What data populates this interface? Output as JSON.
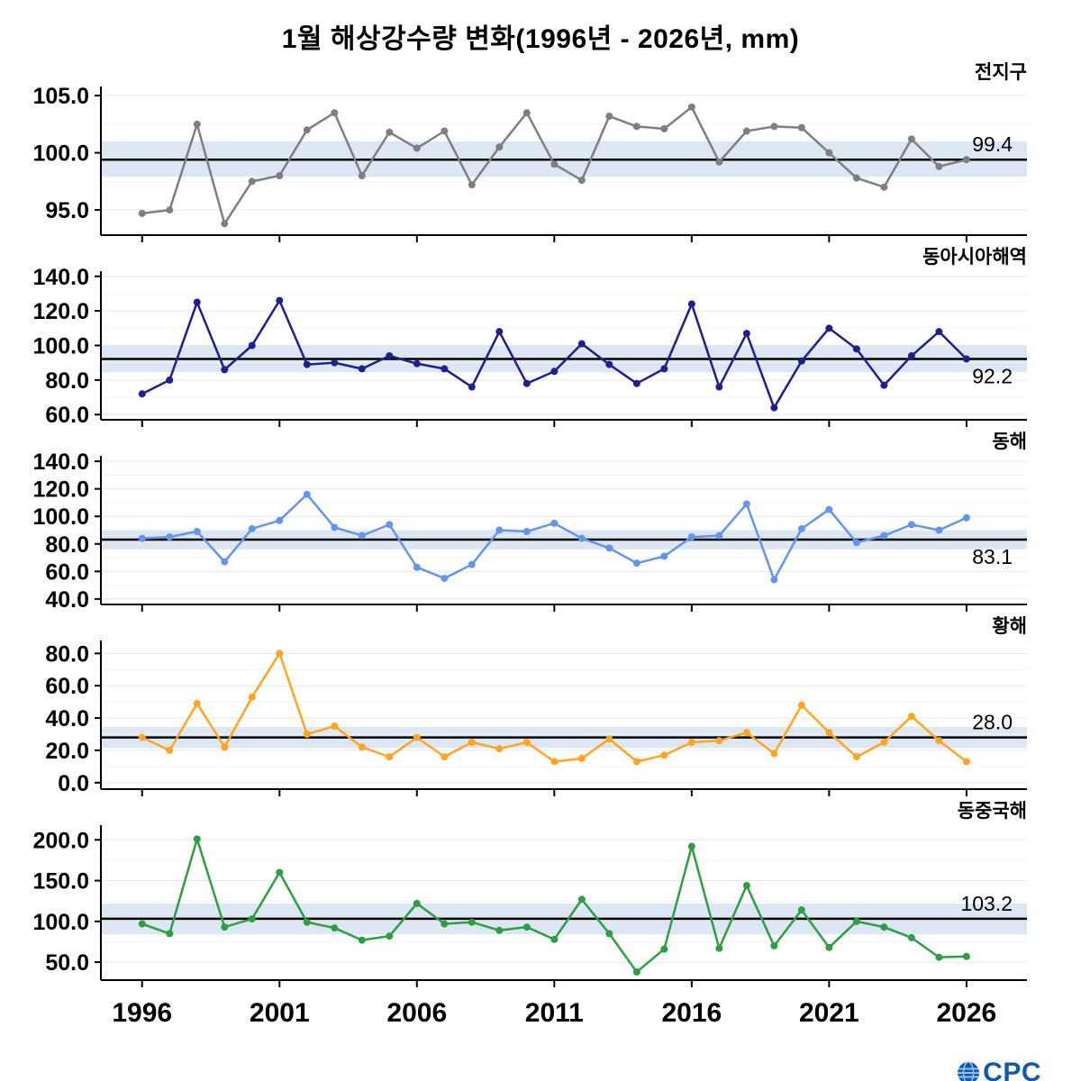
{
  "title": "1월 해상강수량 변화(1996년 - 2026년, mm)",
  "logo": {
    "text": "CPC",
    "color": "#1458ad"
  },
  "chart_data": {
    "type": "line",
    "x": [
      1996,
      1997,
      1998,
      1999,
      2000,
      2001,
      2002,
      2003,
      2004,
      2005,
      2006,
      2007,
      2008,
      2009,
      2010,
      2011,
      2012,
      2013,
      2014,
      2015,
      2016,
      2017,
      2018,
      2019,
      2020,
      2021,
      2022,
      2023,
      2024,
      2025,
      2026
    ],
    "x_ticks": [
      1996,
      2001,
      2006,
      2011,
      2016,
      2021,
      2026
    ],
    "xlim": [
      1994.5,
      2028.2
    ],
    "band_color": "#dce7f3",
    "mean_line_color": "#000000",
    "grid": true,
    "panels": [
      {
        "id": "global",
        "label": "전지구",
        "color": "#7f7f7f",
        "mean": 99.4,
        "mean_label": "99.4",
        "mean_label_pos": "above",
        "band": [
          97.9,
          101.0
        ],
        "ylim": [
          92.8,
          105.8
        ],
        "yticks": [
          95.0,
          100.0,
          105.0
        ],
        "values": [
          94.7,
          95.0,
          102.5,
          93.8,
          97.5,
          98.0,
          102.0,
          103.5,
          98.0,
          101.8,
          100.4,
          101.9,
          97.2,
          100.5,
          103.5,
          99.0,
          97.6,
          103.2,
          102.3,
          102.1,
          104.0,
          99.2,
          101.9,
          102.3,
          102.2,
          100.0,
          97.8,
          97.0,
          101.2,
          98.8,
          99.4
        ]
      },
      {
        "id": "east-asia-seas",
        "label": "동아시아해역",
        "color": "#1f1f8f",
        "mean": 92.2,
        "mean_label": "92.2",
        "mean_label_pos": "below",
        "band": [
          84.5,
          100.0
        ],
        "ylim": [
          57,
          143
        ],
        "yticks": [
          60.0,
          80.0,
          100.0,
          120.0,
          140.0
        ],
        "values": [
          72,
          80,
          125,
          86,
          100,
          126,
          89,
          90,
          86.5,
          94,
          89.5,
          86.5,
          76,
          108,
          78,
          85,
          101,
          89,
          78,
          86.5,
          124,
          76,
          107,
          64,
          91,
          110,
          98,
          77,
          94,
          108,
          92.2
        ]
      },
      {
        "id": "east-sea",
        "label": "동해",
        "color": "#6495ED",
        "mean": 83.1,
        "mean_label": "83.1",
        "mean_label_pos": "below",
        "band": [
          76.0,
          90.5
        ],
        "ylim": [
          36,
          144
        ],
        "yticks": [
          40.0,
          60.0,
          80.0,
          100.0,
          120.0,
          140.0
        ],
        "values": [
          84,
          85,
          89,
          67,
          91,
          97,
          116,
          92,
          86,
          94,
          63,
          55,
          65,
          90,
          89,
          95,
          84,
          77,
          66,
          71,
          85,
          86,
          109,
          54,
          91,
          105,
          81,
          86,
          94,
          90,
          99
        ]
      },
      {
        "id": "yellow-sea",
        "label": "황해",
        "color": "#FFA520",
        "mean": 28.0,
        "mean_label": "28.0",
        "mean_label_pos": "above",
        "band": [
          21.5,
          34.5
        ],
        "ylim": [
          -4,
          88
        ],
        "yticks": [
          0.0,
          20.0,
          40.0,
          60.0,
          80.0
        ],
        "values": [
          28,
          20,
          49,
          22,
          53,
          80,
          30,
          35,
          22,
          16,
          28,
          16,
          25,
          21,
          25,
          13,
          15,
          27,
          13,
          17,
          25,
          26,
          31,
          18,
          48,
          31,
          16,
          25,
          41,
          26,
          13
        ]
      },
      {
        "id": "east-china-sea",
        "label": "동중국해",
        "color": "#2e9e44",
        "mean": 103.2,
        "mean_label": "103.2",
        "mean_label_pos": "above",
        "band": [
          84.0,
          122.0
        ],
        "ylim": [
          28,
          218
        ],
        "yticks": [
          50.0,
          100.0,
          150.0,
          200.0
        ],
        "values": [
          97,
          85,
          201,
          93,
          103,
          160,
          99,
          92,
          77,
          82,
          122,
          97,
          99,
          89,
          93,
          78,
          127,
          85,
          38,
          66,
          192,
          67,
          144,
          70,
          114,
          68,
          100,
          93,
          80,
          56,
          57
        ]
      }
    ]
  }
}
